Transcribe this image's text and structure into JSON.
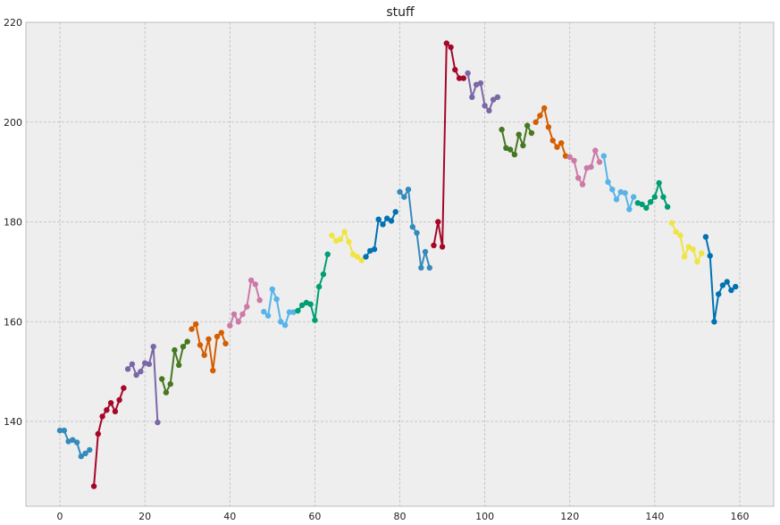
{
  "chart_data": {
    "type": "line",
    "title": "stuff",
    "xlabel": "",
    "ylabel": "",
    "xlim": [
      -8,
      168
    ],
    "ylim": [
      123,
      220
    ],
    "xticks": [
      0,
      20,
      40,
      60,
      80,
      100,
      120,
      140,
      160
    ],
    "yticks": [
      140,
      160,
      180,
      200,
      220
    ],
    "grid": true,
    "style": {
      "background": "#EEEEEE",
      "grid_color": "#BBBBBB",
      "frame_color": "#BCBCBC"
    },
    "series": [
      {
        "color": "#348ABD",
        "x": [
          0,
          1,
          2,
          3,
          4,
          5,
          6,
          7
        ],
        "y": [
          138.2,
          138.2,
          136.0,
          136.3,
          135.8,
          133.0,
          133.6,
          134.3
        ]
      },
      {
        "color": "#A60628",
        "x": [
          8,
          9,
          10,
          11,
          12,
          13,
          14,
          15
        ],
        "y": [
          127.0,
          137.5,
          141.0,
          142.3,
          143.7,
          142.0,
          144.3,
          146.7
        ]
      },
      {
        "color": "#7A68A6",
        "x": [
          16,
          17,
          18,
          19,
          20,
          21,
          22,
          23
        ],
        "y": [
          150.5,
          151.5,
          149.3,
          150.0,
          151.7,
          151.5,
          155.0,
          139.8
        ]
      },
      {
        "color": "#467821",
        "x": [
          24,
          25,
          26,
          27,
          28,
          29,
          30
        ],
        "y": [
          148.5,
          145.8,
          147.5,
          154.3,
          151.3,
          155.0,
          156.0
        ]
      },
      {
        "color": "#D55E00",
        "x": [
          31,
          32,
          33,
          34,
          35,
          36,
          37,
          38,
          39
        ],
        "y": [
          158.5,
          159.5,
          155.3,
          153.3,
          156.5,
          150.2,
          157.0,
          157.8,
          155.6
        ]
      },
      {
        "color": "#CC79A7",
        "x": [
          40,
          41,
          42,
          43,
          44,
          45,
          46,
          47
        ],
        "y": [
          159.2,
          161.5,
          160.0,
          161.5,
          163.0,
          168.3,
          167.5,
          164.3
        ]
      },
      {
        "color": "#56B4E9",
        "x": [
          48,
          49,
          50,
          51,
          52,
          53,
          54,
          55
        ],
        "y": [
          162.0,
          161.2,
          166.5,
          164.5,
          160.0,
          159.3,
          161.9,
          161.9
        ]
      },
      {
        "color": "#009E73",
        "x": [
          56,
          57,
          58,
          59,
          60,
          61,
          62,
          63
        ],
        "y": [
          162.2,
          163.3,
          163.8,
          163.5,
          160.3,
          167.0,
          169.5,
          173.5
        ]
      },
      {
        "color": "#F0E442",
        "x": [
          64,
          65,
          66,
          67,
          68,
          69,
          70,
          71
        ],
        "y": [
          177.3,
          176.2,
          176.5,
          178.0,
          176.0,
          173.5,
          173.0,
          172.3
        ]
      },
      {
        "color": "#0072B2",
        "x": [
          72,
          73,
          74,
          75,
          76,
          77,
          78,
          79
        ],
        "y": [
          173.0,
          174.2,
          174.5,
          180.5,
          179.5,
          180.7,
          180.2,
          182.0
        ]
      },
      {
        "color": "#348ABD",
        "x": [
          80,
          81,
          82,
          83,
          84,
          85,
          86,
          87
        ],
        "y": [
          186.0,
          185.0,
          186.5,
          179.0,
          177.8,
          170.8,
          174.0,
          170.8
        ]
      },
      {
        "color": "#A60628",
        "x": [
          88,
          89,
          90,
          91,
          92,
          93,
          94,
          95
        ],
        "y": [
          175.3,
          180.0,
          175.0,
          215.8,
          215.0,
          210.5,
          208.8,
          208.8
        ]
      },
      {
        "color": "#7A68A6",
        "x": [
          96,
          97,
          98,
          99,
          100,
          101,
          102,
          103
        ],
        "y": [
          209.8,
          205.0,
          207.5,
          207.8,
          203.3,
          202.3,
          204.5,
          205.0
        ]
      },
      {
        "color": "#467821",
        "x": [
          104,
          105,
          106,
          107,
          108,
          109,
          110,
          111
        ],
        "y": [
          198.5,
          194.8,
          194.5,
          193.5,
          197.5,
          195.3,
          199.3,
          197.8
        ]
      },
      {
        "color": "#D55E00",
        "x": [
          112,
          113,
          114,
          115,
          116,
          117,
          118,
          119
        ],
        "y": [
          200.0,
          201.3,
          202.8,
          199.0,
          196.3,
          195.0,
          195.8,
          193.2
        ]
      },
      {
        "color": "#CC79A7",
        "x": [
          120,
          121,
          122,
          123,
          124,
          125,
          126,
          127
        ],
        "y": [
          193.0,
          192.3,
          188.8,
          187.5,
          190.8,
          191.0,
          194.3,
          192.0
        ]
      },
      {
        "color": "#56B4E9",
        "x": [
          128,
          129,
          130,
          131,
          132,
          133,
          134,
          135
        ],
        "y": [
          193.2,
          188.0,
          186.5,
          184.5,
          186.0,
          185.8,
          182.5,
          185.0
        ]
      },
      {
        "color": "#009E73",
        "x": [
          136,
          137,
          138,
          139,
          140,
          141,
          142,
          143
        ],
        "y": [
          183.8,
          183.5,
          182.8,
          184.0,
          185.0,
          187.8,
          185.0,
          183.0
        ]
      },
      {
        "color": "#F0E442",
        "x": [
          144,
          145,
          146,
          147,
          148,
          149,
          150,
          151
        ],
        "y": [
          179.8,
          178.0,
          177.3,
          173.0,
          175.0,
          174.5,
          172.0,
          173.7
        ]
      },
      {
        "color": "#0072B2",
        "x": [
          152,
          153,
          154,
          155,
          156,
          157,
          158,
          159
        ],
        "y": [
          177.0,
          173.2,
          160.0,
          165.5,
          167.3,
          168.0,
          166.3,
          167.0
        ]
      }
    ]
  }
}
